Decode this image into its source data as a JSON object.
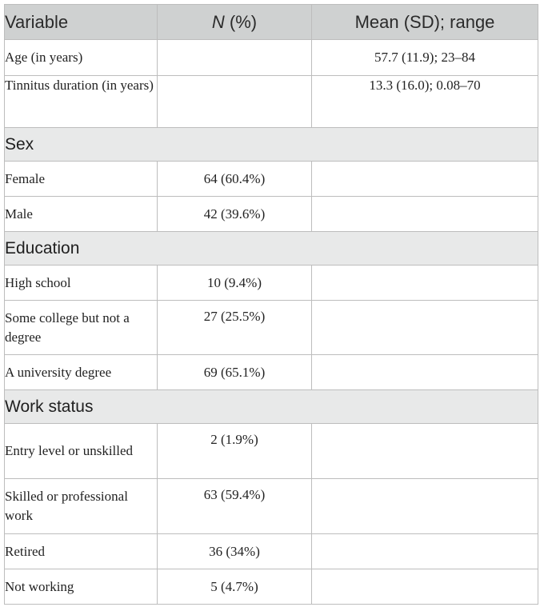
{
  "header": {
    "variable": "Variable",
    "n_italic": "N",
    "n_rest": " (%)",
    "mean": "Mean (SD); range"
  },
  "rows": [
    {
      "label": "Age (in years)",
      "n": "",
      "mean": "57.7 (11.9); 23–84"
    },
    {
      "label": "Tinnitus duration (in years)",
      "n": "",
      "mean": "13.3 (16.0); 0.08–70"
    }
  ],
  "sections": [
    {
      "title": "Sex",
      "rows": [
        {
          "label": "Female",
          "n": "64 (60.4%)",
          "mean": ""
        },
        {
          "label": "Male",
          "n": "42 (39.6%)",
          "mean": ""
        }
      ]
    },
    {
      "title": "Education",
      "rows": [
        {
          "label": "High school",
          "n": "10 (9.4%)",
          "mean": ""
        },
        {
          "label": "Some college but not a degree",
          "n": "27 (25.5%)",
          "mean": ""
        },
        {
          "label": "A university degree",
          "n": "69 (65.1%)",
          "mean": ""
        }
      ]
    },
    {
      "title": "Work status",
      "rows": [
        {
          "label": "Entry level or unskilled",
          "n": "2 (1.9%)",
          "mean": ""
        },
        {
          "label": "Skilled or professional work",
          "n": "63 (59.4%)",
          "mean": ""
        },
        {
          "label": "Retired",
          "n": "36 (34%)",
          "mean": ""
        },
        {
          "label": "Not working",
          "n": "5 (4.7%)",
          "mean": ""
        }
      ]
    }
  ]
}
